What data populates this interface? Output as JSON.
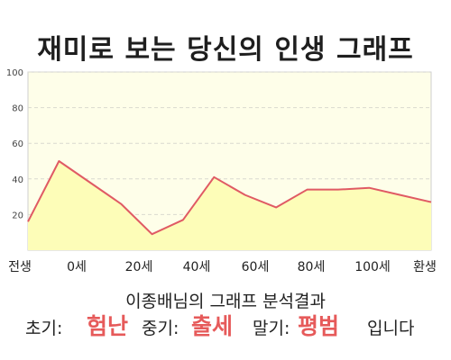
{
  "title": "재미로 보는 당신의 인생 그래프",
  "subtitle": "이종배님의 그래프 분석결과",
  "summary": {
    "early_label": "초기:",
    "early_value": "험난",
    "middle_label": "중기:",
    "middle_value": "출세",
    "late_label": "말기:",
    "late_value": "평범",
    "ending": "입니다"
  },
  "colors": {
    "plot_background": "#fefee9",
    "area_fill": "#fdfdb8",
    "line": "#e05a64",
    "highlight_text": "#e65a5a"
  },
  "chart_data": {
    "type": "area",
    "title": "",
    "xlabel": "",
    "ylabel": "",
    "ylim": [
      0,
      100
    ],
    "yticks": [
      100,
      80,
      60,
      40,
      20
    ],
    "grid": true,
    "x_tick_labels": [
      "전생",
      "0세",
      "20세",
      "40세",
      "60세",
      "80세",
      "100세",
      "환생"
    ],
    "x": [
      "전생",
      "0세",
      "",
      "20세",
      "",
      "40세",
      "",
      "60세",
      "",
      "80세",
      "",
      "100세",
      "",
      "환생"
    ],
    "values": [
      16,
      50,
      38,
      26,
      9,
      17,
      41,
      31,
      24,
      34,
      34,
      35,
      31,
      27
    ]
  }
}
